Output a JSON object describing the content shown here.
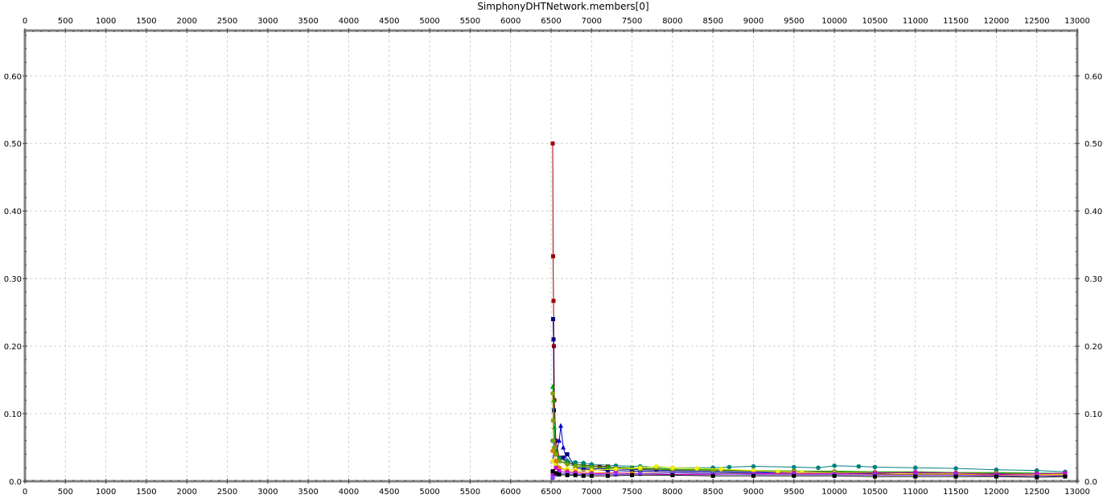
{
  "chart_data": {
    "type": "line",
    "title": "SimphonyDHTNetwork.members[0]",
    "xlabel": "",
    "ylabel": "",
    "xlim": [
      0,
      13000
    ],
    "ylim": [
      0,
      0.667
    ],
    "grid": true,
    "x_ticks": [
      "0",
      "500",
      "1000",
      "1500",
      "2000",
      "2500",
      "3000",
      "3500",
      "4000",
      "4500",
      "5000",
      "5500",
      "6000",
      "6500",
      "7000",
      "7500",
      "8000",
      "8500",
      "9000",
      "9500",
      "10000",
      "10500",
      "11000",
      "11500",
      "12000",
      "12500",
      "13000"
    ],
    "x_tick_values": [
      0,
      500,
      1000,
      1500,
      2000,
      2500,
      3000,
      3500,
      4000,
      4500,
      5000,
      5500,
      6000,
      6500,
      7000,
      7500,
      8000,
      8500,
      9000,
      9500,
      10000,
      10500,
      11000,
      11500,
      12000,
      12500,
      13000
    ],
    "y_ticks": [
      "0.0",
      "0.10",
      "0.20",
      "0.30",
      "0.40",
      "0.50",
      "0.60"
    ],
    "y_tick_values": [
      0,
      0.1,
      0.2,
      0.3,
      0.4,
      0.5,
      0.6
    ],
    "series": [
      {
        "name": "darkred",
        "color": "#a00000",
        "marker": "square",
        "x": [
          6520,
          6525,
          6530,
          6535,
          6540,
          6560,
          6600,
          6700,
          6800,
          6900,
          7000,
          7100,
          7200,
          7300,
          7500,
          7800,
          8000,
          8500,
          9000,
          9500,
          10000,
          10500,
          11000,
          11500,
          12000,
          12500,
          12850
        ],
        "y": [
          0.5,
          0.333,
          0.267,
          0.2,
          0.12,
          0.06,
          0.035,
          0.028,
          0.025,
          0.024,
          0.023,
          0.022,
          0.022,
          0.02,
          0.019,
          0.018,
          0.017,
          0.016,
          0.015,
          0.015,
          0.014,
          0.013,
          0.013,
          0.012,
          0.012,
          0.011,
          0.011
        ]
      },
      {
        "name": "navy",
        "color": "#000080",
        "marker": "square",
        "x": [
          6525,
          6530,
          6535,
          6545,
          6560,
          6600,
          6650,
          6700,
          6800,
          6900,
          7000,
          7200,
          7500,
          8000,
          8500,
          9000,
          9500,
          10000,
          10500,
          11000,
          11500,
          12000,
          12500,
          12850
        ],
        "y": [
          0.24,
          0.21,
          0.105,
          0.06,
          0.04,
          0.03,
          0.035,
          0.04,
          0.02,
          0.018,
          0.017,
          0.016,
          0.015,
          0.014,
          0.013,
          0.012,
          0.012,
          0.011,
          0.011,
          0.01,
          0.01,
          0.01,
          0.009,
          0.009
        ]
      },
      {
        "name": "blue",
        "color": "#0000c0",
        "marker": "triangle",
        "x": [
          6520,
          6540,
          6560,
          6600,
          6620,
          6650,
          6700,
          6800,
          6900,
          7000,
          7300,
          7600,
          8000,
          8500,
          9000,
          9500,
          10000,
          10500,
          11000,
          11500,
          12000,
          12500,
          12850
        ],
        "y": [
          0.03,
          0.05,
          0.04,
          0.06,
          0.082,
          0.05,
          0.03,
          0.022,
          0.02,
          0.019,
          0.018,
          0.017,
          0.016,
          0.015,
          0.014,
          0.013,
          0.013,
          0.012,
          0.012,
          0.011,
          0.011,
          0.01,
          0.01
        ]
      },
      {
        "name": "teal",
        "color": "#008080",
        "marker": "circle",
        "x": [
          6520,
          6540,
          6560,
          6600,
          6700,
          6800,
          6900,
          7000,
          7300,
          7600,
          8000,
          8500,
          8700,
          9000,
          9500,
          9800,
          10000,
          10300,
          10500,
          11000,
          11500,
          12000,
          12500,
          12850
        ],
        "y": [
          0.06,
          0.05,
          0.04,
          0.035,
          0.03,
          0.028,
          0.027,
          0.025,
          0.023,
          0.022,
          0.02,
          0.02,
          0.021,
          0.022,
          0.021,
          0.02,
          0.023,
          0.022,
          0.021,
          0.02,
          0.019,
          0.017,
          0.016,
          0.014
        ]
      },
      {
        "name": "green",
        "color": "#00a000",
        "marker": "triangle",
        "x": [
          6520,
          6530,
          6540,
          6560,
          6600,
          6700,
          6800,
          6900,
          7000,
          7200,
          7500,
          8000,
          8500,
          9000,
          9500,
          10000,
          10500,
          11000,
          11500,
          12000,
          12500,
          12850
        ],
        "y": [
          0.14,
          0.12,
          0.08,
          0.045,
          0.03,
          0.027,
          0.025,
          0.023,
          0.022,
          0.021,
          0.02,
          0.018,
          0.017,
          0.016,
          0.015,
          0.015,
          0.014,
          0.014,
          0.013,
          0.013,
          0.012,
          0.012
        ]
      },
      {
        "name": "olive",
        "color": "#80a000",
        "marker": "circle",
        "x": [
          6520,
          6525,
          6530,
          6540,
          6560,
          6600,
          6700,
          6800,
          7000,
          7300,
          7600,
          8000,
          8500,
          9000,
          9500,
          10000,
          10500,
          11000,
          11500,
          12000,
          12500,
          12850
        ],
        "y": [
          0.13,
          0.09,
          0.06,
          0.05,
          0.04,
          0.03,
          0.025,
          0.022,
          0.02,
          0.019,
          0.018,
          0.017,
          0.016,
          0.015,
          0.015,
          0.014,
          0.013,
          0.013,
          0.012,
          0.012,
          0.011,
          0.011
        ]
      },
      {
        "name": "yellow",
        "color": "#f0f000",
        "marker": "circle",
        "x": [
          6520,
          6560,
          6600,
          6700,
          6800,
          7000,
          7300,
          7600,
          7800,
          8000,
          8300,
          8600,
          9000,
          9300,
          9600,
          10000,
          10500,
          11000,
          11500,
          12000,
          12500,
          12850
        ],
        "y": [
          0.03,
          0.025,
          0.02,
          0.018,
          0.017,
          0.016,
          0.018,
          0.02,
          0.022,
          0.02,
          0.019,
          0.018,
          0.016,
          0.014,
          0.013,
          0.012,
          0.012,
          0.011,
          0.011,
          0.01,
          0.01,
          0.01
        ]
      },
      {
        "name": "orange",
        "color": "#e08000",
        "marker": "circle",
        "x": [
          6520,
          6560,
          6600,
          6700,
          6800,
          7000,
          7500,
          8000,
          8500,
          9000,
          9500,
          10000,
          10500,
          11000,
          11500,
          12000,
          12500,
          12850
        ],
        "y": [
          0.045,
          0.03,
          0.02,
          0.015,
          0.014,
          0.013,
          0.012,
          0.012,
          0.011,
          0.011,
          0.011,
          0.01,
          0.01,
          0.01,
          0.01,
          0.009,
          0.009,
          0.009
        ]
      },
      {
        "name": "magenta",
        "color": "#d000d0",
        "marker": "square",
        "x": [
          6520,
          6560,
          6600,
          6700,
          6800,
          7000,
          7300,
          7600,
          8000,
          8500,
          9000,
          9500,
          10000,
          10500,
          11000,
          11500,
          12000,
          12500,
          12850
        ],
        "y": [
          0.01,
          0.02,
          0.015,
          0.013,
          0.012,
          0.011,
          0.012,
          0.011,
          0.01,
          0.01,
          0.011,
          0.012,
          0.011,
          0.012,
          0.013,
          0.012,
          0.01,
          0.011,
          0.012
        ]
      },
      {
        "name": "violet",
        "color": "#8040ff",
        "marker": "circle",
        "x": [
          6520,
          6560,
          6600,
          6700,
          6800,
          7000,
          7300,
          7600,
          8000,
          8500,
          9000,
          9500,
          10000,
          10500,
          11000,
          11500,
          12000,
          12500,
          12850
        ],
        "y": [
          0.005,
          0.01,
          0.012,
          0.011,
          0.01,
          0.01,
          0.01,
          0.011,
          0.012,
          0.011,
          0.01,
          0.01,
          0.01,
          0.009,
          0.009,
          0.009,
          0.008,
          0.008,
          0.008
        ]
      },
      {
        "name": "black",
        "color": "#000000",
        "marker": "square",
        "x": [
          6520,
          6560,
          6600,
          6700,
          6800,
          6900,
          7000,
          7200,
          7500,
          8000,
          8500,
          9000,
          9500,
          10000,
          10500,
          11000,
          11500,
          12000,
          12500,
          12850
        ],
        "y": [
          0.015,
          0.012,
          0.01,
          0.009,
          0.009,
          0.008,
          0.008,
          0.008,
          0.009,
          0.009,
          0.008,
          0.008,
          0.008,
          0.008,
          0.007,
          0.007,
          0.007,
          0.007,
          0.006,
          0.007
        ]
      }
    ]
  }
}
